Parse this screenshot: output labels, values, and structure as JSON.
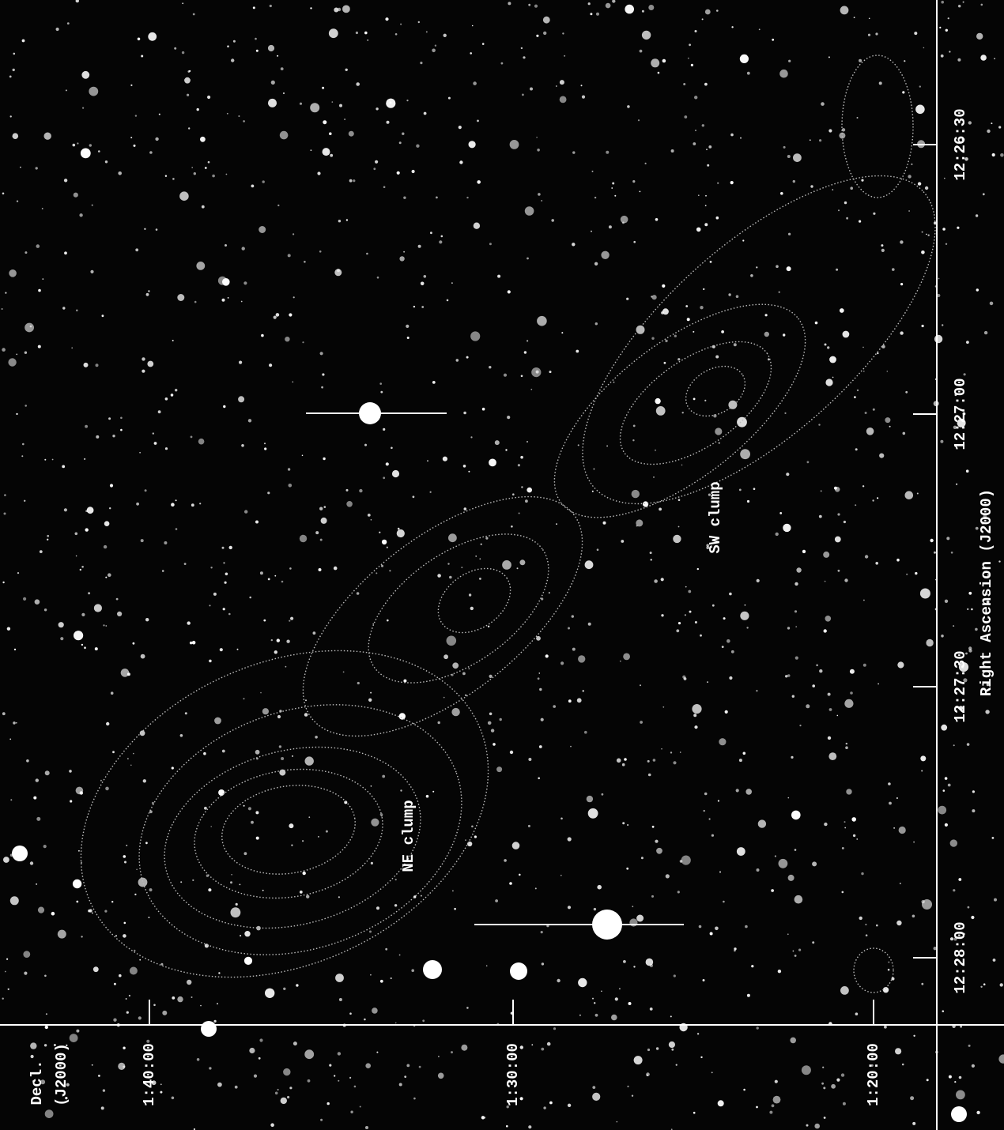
{
  "axes": {
    "ra": {
      "label": "Right Ascension (J2000)",
      "ticks": [
        "12:26:30",
        "12:27:00",
        "12:27:30",
        "12:28:00"
      ]
    },
    "dec": {
      "label_lines": [
        "Decl.",
        "(J2000)"
      ],
      "ticks": [
        "1:40:00",
        "1:30:00",
        "1:20:00"
      ]
    }
  },
  "annotations": [
    "NE clump",
    "SW clump"
  ]
}
